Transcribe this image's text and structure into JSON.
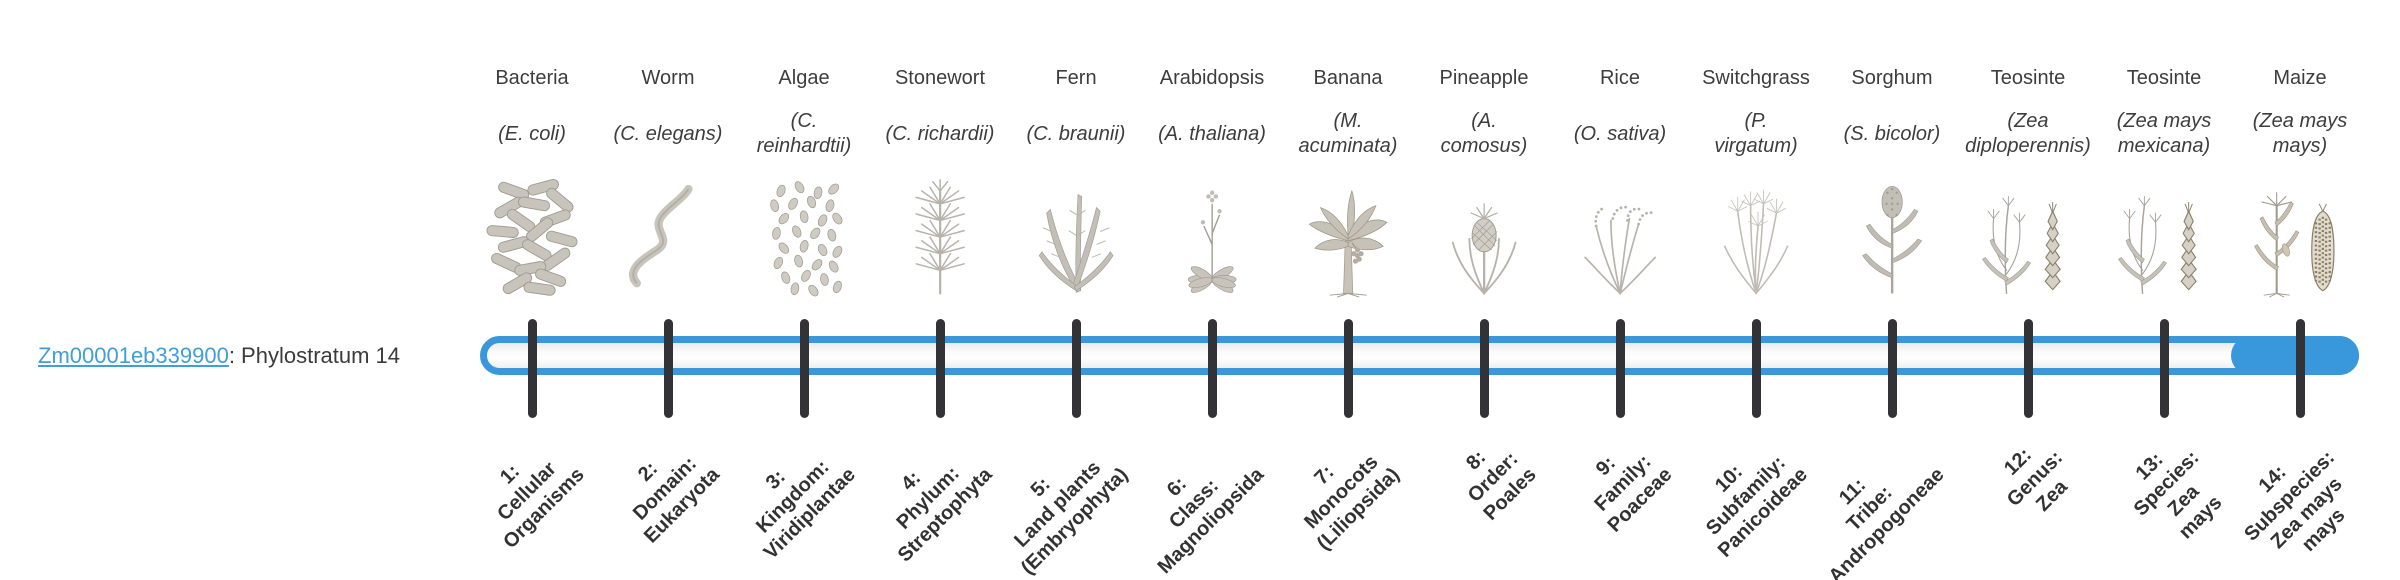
{
  "gene": {
    "id_label": "Zm00001eb339900",
    "annotation": ": Phylostratum 14"
  },
  "highlighted_stratum": 14,
  "colors": {
    "bar_blue": "#3998db",
    "link_blue": "#3f9edb",
    "tick_dark": "#333336",
    "text_dark": "#3d3d3d"
  },
  "strata": [
    {
      "num": 1,
      "name": "Bacteria",
      "species": "(E. coli)",
      "rank": "1:\nCellular\nOrganisms",
      "icon": "bacteria"
    },
    {
      "num": 2,
      "name": "Worm",
      "species": "(C. elegans)",
      "rank": "2:\nDomain:\nEukaryota",
      "icon": "worm"
    },
    {
      "num": 3,
      "name": "Algae",
      "species": "(C.\nreinhardtii)",
      "rank": "3:\nKingdom:\nViridiplantae",
      "icon": "algae"
    },
    {
      "num": 4,
      "name": "Stonewort",
      "species": "(C. richardii)",
      "rank": "4:\nPhylum:\nStreptophyta",
      "icon": "stonewort"
    },
    {
      "num": 5,
      "name": "Fern",
      "species": "(C. braunii)",
      "rank": "5:\nLand plants\n(Embryophyta)",
      "icon": "fern"
    },
    {
      "num": 6,
      "name": "Arabidopsis",
      "species": "(A. thaliana)",
      "rank": "6:\nClass:\nMagnoliopsida",
      "icon": "arabidopsis"
    },
    {
      "num": 7,
      "name": "Banana",
      "species": "(M.\nacuminata)",
      "rank": "7:\nMonocots\n(Liliopsida)",
      "icon": "banana"
    },
    {
      "num": 8,
      "name": "Pineapple",
      "species": "(A.\ncomosus)",
      "rank": "8:\nOrder:\nPoales",
      "icon": "pineapple"
    },
    {
      "num": 9,
      "name": "Rice",
      "species": "(O. sativa)",
      "rank": "9:\nFamily:\nPoaceae",
      "icon": "rice"
    },
    {
      "num": 10,
      "name": "Switchgrass",
      "species": "(P.\nvirgatum)",
      "rank": "10:\nSubfamily:\nPanicoideae",
      "icon": "switchgrass"
    },
    {
      "num": 11,
      "name": "Sorghum",
      "species": "(S. bicolor)",
      "rank": "11:\nTribe:\nAndropogoneae",
      "icon": "sorghum"
    },
    {
      "num": 12,
      "name": "Teosinte",
      "species": "(Zea\ndiploperennis)",
      "rank": "12:\nGenus:\nZea",
      "icon": "teosinte"
    },
    {
      "num": 13,
      "name": "Teosinte",
      "species": "(Zea mays\nmexicana)",
      "rank": "13:\nSpecies:\nZea\nmays",
      "icon": "teosinte"
    },
    {
      "num": 14,
      "name": "Maize",
      "species": "(Zea mays\nmays)",
      "rank": "14:\nSubspecies:\nZea mays\nmays",
      "icon": "maize"
    }
  ]
}
